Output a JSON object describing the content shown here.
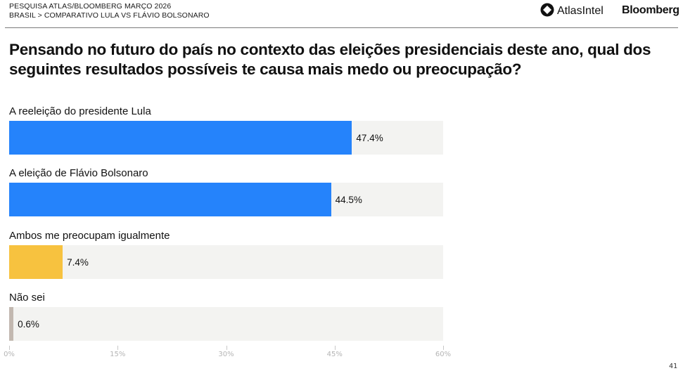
{
  "header": {
    "line1": "PESQUISA ATLAS/BLOOMBERG MARÇO 2026",
    "line2": "BRASIL > COMPARATIVO LULA VS FLÁVIO BOLSONARO",
    "logo_atlas": "AtlasIntel",
    "logo_atlas_icon": "atlasintel-logo-icon",
    "logo_bloomberg": "Bloomberg"
  },
  "page_number": "41",
  "colors": {
    "blue": "#2583fb",
    "yellow": "#f7c23f",
    "gray": "#c2b8b0",
    "track": "#f3f3f1"
  },
  "chart_data": {
    "type": "bar",
    "orientation": "horizontal",
    "title": "Pensando no futuro do país no contexto das eleições presidenciais deste ano, qual dos seguintes resultados possíveis te causa mais medo ou preocupação?",
    "categories": [
      "A reeleição do presidente Lula",
      "A eleição de Flávio Bolsonaro",
      "Ambos me preocupam igualmente",
      "Não sei"
    ],
    "values": [
      47.4,
      44.5,
      7.4,
      0.6
    ],
    "value_labels": [
      "47.4%",
      "44.5%",
      "7.4%",
      "0.6%"
    ],
    "bar_colors": [
      "#2583fb",
      "#2583fb",
      "#f7c23f",
      "#c2b8b0"
    ],
    "xlim": [
      0,
      60
    ],
    "xticks": [
      0,
      15,
      30,
      45,
      60
    ],
    "xtick_labels": [
      "0%",
      "15%",
      "30%",
      "45%",
      "60%"
    ],
    "xlabel": "",
    "ylabel": "",
    "grid": false,
    "legend": "none"
  }
}
